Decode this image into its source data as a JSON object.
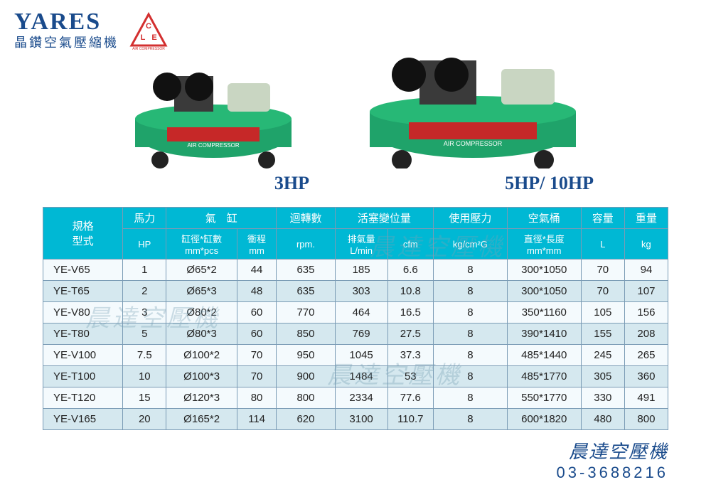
{
  "brand": {
    "en": "YARES",
    "zh": "晶鑽空氣壓縮機",
    "logo_letters": "CLE",
    "logo_sub": "AIR COMPRESSOR",
    "logo_color": "#d32f2f"
  },
  "product_images": {
    "small_label": "3HP",
    "large_label": "5HP/ 10HP",
    "tank_color": "#1fa36a",
    "wheel_color": "#222222",
    "motor_color": "#c9d6c2"
  },
  "table": {
    "header_bg": "#00b8d4",
    "header_fg": "#ffffff",
    "border_color": "#7a9bb5",
    "row_even_bg": "#f4fafd",
    "row_odd_bg": "#d5e8ef",
    "headers_top": {
      "model": "規格\n型式",
      "hp": "馬力",
      "cylinder": "氣　缸",
      "rpm": "迴轉數",
      "displacement": "活塞變位量",
      "pressure": "使用壓力",
      "tank": "空氣桶",
      "capacity": "容量",
      "weight": "重量"
    },
    "headers_sub": {
      "hp": "HP",
      "bore": "缸徑*缸數\nmm*pcs",
      "stroke": "衝程\nmm",
      "rpm": "rpm.",
      "lmin": "排氣量\nL/min",
      "cfm": "cfm",
      "pressure": "kg/cm²G",
      "tank": "直徑*長度\nmm*mm",
      "capacity": "L",
      "weight": "kg"
    },
    "rows": [
      {
        "model": "YE-V65",
        "hp": "1",
        "bore": "Ø65*2",
        "stroke": "44",
        "rpm": "635",
        "lmin": "185",
        "cfm": "6.6",
        "pressure": "8",
        "tank": "300*1050",
        "capacity": "70",
        "weight": "94"
      },
      {
        "model": "YE-T65",
        "hp": "2",
        "bore": "Ø65*3",
        "stroke": "48",
        "rpm": "635",
        "lmin": "303",
        "cfm": "10.8",
        "pressure": "8",
        "tank": "300*1050",
        "capacity": "70",
        "weight": "107"
      },
      {
        "model": "YE-V80",
        "hp": "3",
        "bore": "Ø80*2",
        "stroke": "60",
        "rpm": "770",
        "lmin": "464",
        "cfm": "16.5",
        "pressure": "8",
        "tank": "350*1160",
        "capacity": "105",
        "weight": "156"
      },
      {
        "model": "YE-T80",
        "hp": "5",
        "bore": "Ø80*3",
        "stroke": "60",
        "rpm": "850",
        "lmin": "769",
        "cfm": "27.5",
        "pressure": "8",
        "tank": "390*1410",
        "capacity": "155",
        "weight": "208"
      },
      {
        "model": "YE-V100",
        "hp": "7.5",
        "bore": "Ø100*2",
        "stroke": "70",
        "rpm": "950",
        "lmin": "1045",
        "cfm": "37.3",
        "pressure": "8",
        "tank": "485*1440",
        "capacity": "245",
        "weight": "265"
      },
      {
        "model": "YE-T100",
        "hp": "10",
        "bore": "Ø100*3",
        "stroke": "70",
        "rpm": "900",
        "lmin": "1484",
        "cfm": "53",
        "pressure": "8",
        "tank": "485*1770",
        "capacity": "305",
        "weight": "360"
      },
      {
        "model": "YE-T120",
        "hp": "15",
        "bore": "Ø120*3",
        "stroke": "80",
        "rpm": "800",
        "lmin": "2334",
        "cfm": "77.6",
        "pressure": "8",
        "tank": "550*1770",
        "capacity": "330",
        "weight": "491"
      },
      {
        "model": "YE-V165",
        "hp": "20",
        "bore": "Ø165*2",
        "stroke": "114",
        "rpm": "620",
        "lmin": "3100",
        "cfm": "110.7",
        "pressure": "8",
        "tank": "600*1820",
        "capacity": "480",
        "weight": "800"
      }
    ]
  },
  "footer": {
    "name": "晨達空壓機",
    "phone": "03-3688216"
  },
  "watermark_text": "晨達空壓機"
}
